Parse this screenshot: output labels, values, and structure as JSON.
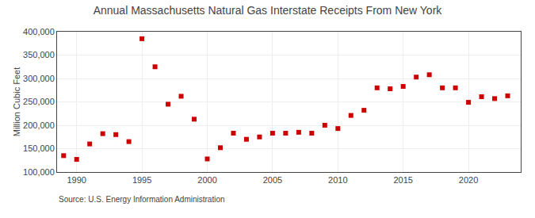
{
  "chart_data": {
    "type": "scatter",
    "title": "Annual Massachusetts Natural Gas Interstate Receipts From New York",
    "ylabel": "Million Cubic Feet",
    "source": "Source: U.S. Energy Information Administration",
    "x": [
      1989,
      1990,
      1991,
      1992,
      1993,
      1994,
      1995,
      1996,
      1997,
      1998,
      1999,
      2000,
      2001,
      2002,
      2003,
      2004,
      2005,
      2006,
      2007,
      2008,
      2009,
      2010,
      2011,
      2012,
      2013,
      2014,
      2015,
      2016,
      2017,
      2018,
      2019,
      2020,
      2021,
      2022,
      2023
    ],
    "values": [
      135000,
      127000,
      160000,
      182000,
      180000,
      165000,
      385000,
      325000,
      245000,
      262000,
      213000,
      128000,
      152000,
      183000,
      170000,
      175000,
      183000,
      183000,
      185000,
      183000,
      200000,
      193000,
      221000,
      232000,
      280000,
      278000,
      283000,
      303000,
      308000,
      280000,
      280000,
      249000,
      261000,
      257000,
      263000
    ],
    "color": "#cc0000",
    "marker": "square",
    "xlim": [
      1988.5,
      2024
    ],
    "xticks": [
      1990,
      1995,
      2000,
      2005,
      2010,
      2015,
      2020
    ],
    "ylim": [
      100000,
      400000
    ],
    "yticks": [
      {
        "value": 100000,
        "label": "100,000"
      },
      {
        "value": 150000,
        "label": "150,000"
      },
      {
        "value": 200000,
        "label": "200,000"
      },
      {
        "value": 250000,
        "label": "250,000"
      },
      {
        "value": 300000,
        "label": "300,000"
      },
      {
        "value": 350000,
        "label": "350,000"
      },
      {
        "value": 400000,
        "label": "400,000"
      }
    ],
    "grid": true
  }
}
